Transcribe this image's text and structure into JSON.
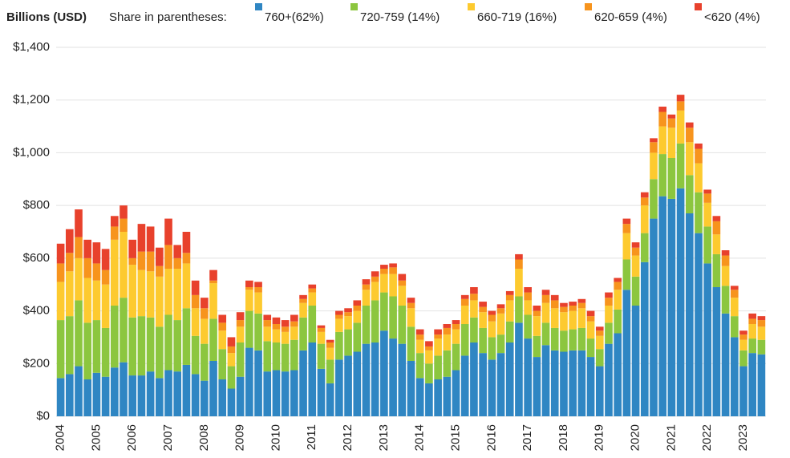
{
  "chart_data": {
    "type": "stacked_bar",
    "y_axis_label": "Billions (USD)",
    "legend_title": "Share in parentheses:",
    "categories": [
      "2004",
      null,
      null,
      null,
      "2005",
      null,
      null,
      null,
      "2006",
      null,
      null,
      null,
      "2007",
      null,
      null,
      null,
      "2008",
      null,
      null,
      null,
      "2009",
      null,
      null,
      null,
      "2010",
      null,
      null,
      null,
      "2011",
      null,
      null,
      null,
      "2012",
      null,
      null,
      null,
      "2013",
      null,
      null,
      null,
      "2014",
      null,
      null,
      null,
      "2015",
      null,
      null,
      null,
      "2016",
      null,
      null,
      null,
      "2017",
      null,
      null,
      null,
      "2018",
      null,
      null,
      null,
      "2019",
      null,
      null,
      null,
      "2020",
      null,
      null,
      null,
      "2021",
      null,
      null,
      null,
      "2022",
      null,
      null,
      null,
      "2023",
      null,
      null
    ],
    "series": [
      {
        "name": "760+(62%)",
        "color": "#2f86c3",
        "values": [
          145,
          160,
          190,
          140,
          165,
          150,
          185,
          205,
          155,
          155,
          170,
          145,
          175,
          170,
          195,
          160,
          135,
          210,
          140,
          105,
          150,
          260,
          250,
          170,
          175,
          170,
          175,
          250,
          280,
          180,
          125,
          215,
          230,
          245,
          275,
          280,
          325,
          295,
          275,
          210,
          145,
          125,
          140,
          150,
          175,
          230,
          280,
          240,
          215,
          240,
          280,
          355,
          295,
          225,
          270,
          250,
          245,
          250,
          250,
          225,
          190,
          275,
          315,
          480,
          420,
          585,
          750,
          835,
          825,
          865,
          770,
          695,
          580,
          490,
          390,
          300,
          190,
          240,
          235
        ]
      },
      {
        "name": "720-759 (14%)",
        "color": "#8cc63f",
        "values": [
          220,
          220,
          250,
          215,
          200,
          185,
          235,
          245,
          220,
          225,
          205,
          195,
          210,
          195,
          215,
          145,
          140,
          160,
          115,
          85,
          130,
          140,
          140,
          115,
          105,
          105,
          115,
          125,
          140,
          95,
          90,
          105,
          100,
          110,
          145,
          160,
          145,
          160,
          145,
          130,
          95,
          75,
          90,
          100,
          100,
          120,
          95,
          95,
          85,
          70,
          80,
          100,
          90,
          80,
          85,
          85,
          80,
          80,
          85,
          70,
          65,
          80,
          90,
          115,
          110,
          110,
          150,
          160,
          155,
          170,
          145,
          155,
          140,
          125,
          105,
          80,
          60,
          55,
          55
        ]
      },
      {
        "name": "660-719 (16%)",
        "color": "#fdca2f",
        "values": [
          145,
          170,
          160,
          170,
          150,
          165,
          250,
          250,
          200,
          175,
          175,
          190,
          175,
          195,
          170,
          105,
          95,
          135,
          70,
          50,
          60,
          80,
          80,
          55,
          50,
          45,
          50,
          55,
          50,
          45,
          45,
          50,
          50,
          45,
          60,
          70,
          70,
          85,
          75,
          70,
          50,
          50,
          65,
          60,
          55,
          70,
          65,
          60,
          60,
          80,
          80,
          105,
          55,
          75,
          75,
          75,
          70,
          70,
          75,
          65,
          50,
          65,
          75,
          100,
          80,
          105,
          100,
          105,
          115,
          125,
          125,
          110,
          90,
          75,
          75,
          70,
          40,
          55,
          50
        ]
      },
      {
        "name": "620-659 (4%)",
        "color": "#f7941d",
        "values": [
          70,
          70,
          80,
          75,
          65,
          55,
          50,
          50,
          25,
          70,
          75,
          40,
          90,
          40,
          40,
          50,
          40,
          10,
          30,
          25,
          25,
          10,
          20,
          25,
          20,
          20,
          20,
          15,
          15,
          15,
          20,
          15,
          15,
          20,
          20,
          20,
          20,
          25,
          20,
          20,
          20,
          15,
          15,
          25,
          20,
          25,
          25,
          20,
          25,
          20,
          20,
          35,
          30,
          20,
          30,
          30,
          20,
          20,
          20,
          20,
          20,
          30,
          30,
          35,
          30,
          30,
          40,
          55,
          35,
          35,
          55,
          55,
          35,
          50,
          40,
          30,
          20,
          20,
          25
        ]
      },
      {
        "name": "<620 (4%)",
        "color": "#e8412c",
        "values": [
          75,
          90,
          105,
          70,
          80,
          80,
          40,
          50,
          70,
          105,
          95,
          70,
          100,
          50,
          80,
          55,
          40,
          40,
          30,
          35,
          30,
          25,
          20,
          20,
          25,
          25,
          25,
          15,
          15,
          10,
          10,
          15,
          15,
          20,
          20,
          20,
          15,
          15,
          25,
          20,
          20,
          20,
          20,
          15,
          15,
          15,
          25,
          20,
          15,
          15,
          15,
          20,
          20,
          20,
          20,
          20,
          15,
          15,
          15,
          20,
          15,
          20,
          15,
          20,
          20,
          20,
          15,
          20,
          15,
          25,
          20,
          20,
          15,
          20,
          20,
          15,
          15,
          20,
          15
        ]
      }
    ],
    "ylim": [
      0,
      1400
    ],
    "yticks": [
      {
        "value": 0,
        "label": "$0"
      },
      {
        "value": 200,
        "label": "$200"
      },
      {
        "value": 400,
        "label": "$400"
      },
      {
        "value": 600,
        "label": "$600"
      },
      {
        "value": 800,
        "label": "$800"
      },
      {
        "value": 1000,
        "label": "$1,000"
      },
      {
        "value": 1200,
        "label": "$1,200"
      },
      {
        "value": 1400,
        "label": "$1,400"
      }
    ],
    "grid": true
  }
}
